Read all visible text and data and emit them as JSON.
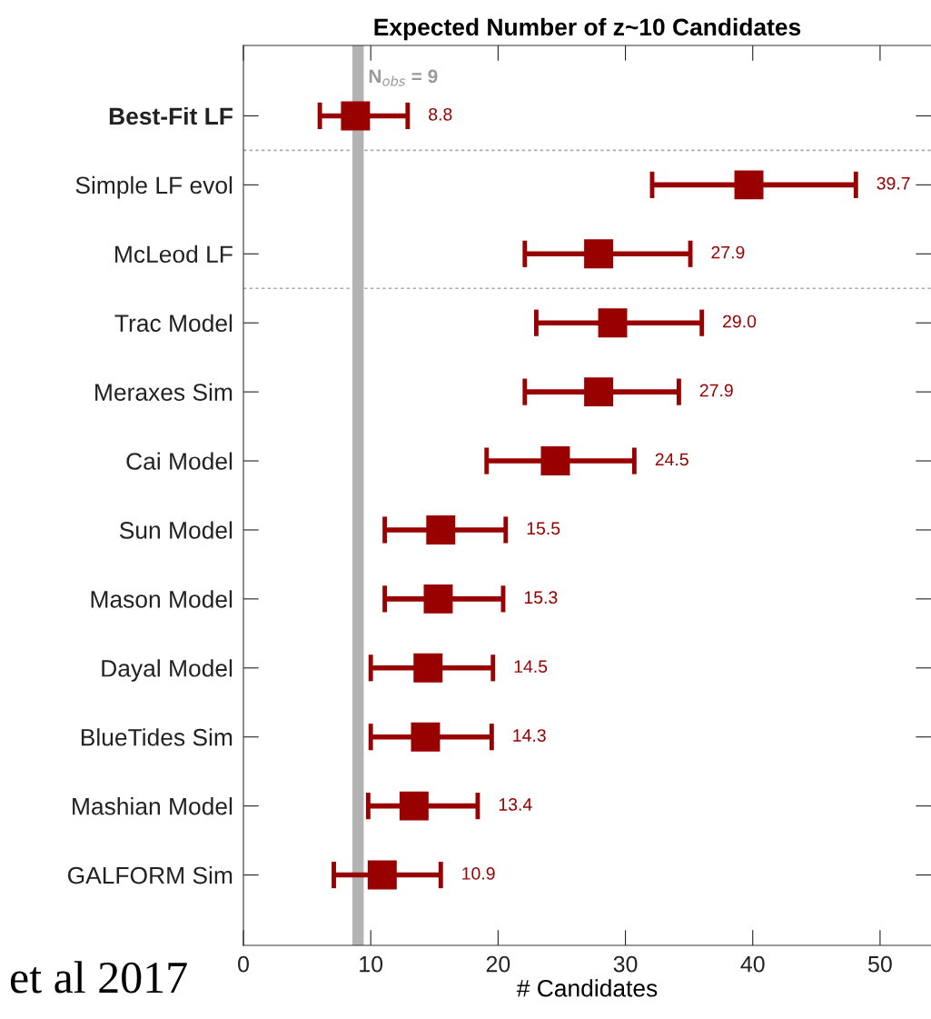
{
  "chart_data": {
    "type": "scatter",
    "title": "Expected Number of z~10 Candidates",
    "xlabel": "# Candidates",
    "categories": [
      "Best-Fit LF",
      "Simple LF evol",
      "McLeod LF",
      "Trac Model",
      "Meraxes Sim",
      "Cai Model",
      "Sun Model",
      "Mason Model",
      "Dayal Model",
      "BlueTides Sim",
      "Mashian Model",
      "GALFORM Sim"
    ],
    "series": [
      {
        "color": "#990000",
        "values": [
          8.8,
          39.7,
          27.9,
          29.0,
          27.9,
          24.5,
          15.5,
          15.3,
          14.5,
          14.3,
          13.4,
          10.9
        ],
        "errors": [
          [
            6.0,
            12.9
          ],
          [
            32.1,
            48.1
          ],
          [
            22.1,
            35.1
          ],
          [
            23.0,
            36.0
          ],
          [
            22.1,
            34.2
          ],
          [
            19.1,
            30.7
          ],
          [
            11.1,
            20.6
          ],
          [
            11.1,
            20.4
          ],
          [
            10.0,
            19.6
          ],
          [
            10.0,
            19.5
          ],
          [
            9.8,
            18.4
          ],
          [
            7.1,
            15.5
          ]
        ]
      }
    ],
    "value_labels": [
      "8.8",
      "39.7",
      "27.9",
      "29.0",
      "27.9",
      "24.5",
      "15.5",
      "15.3",
      "14.5",
      "14.3",
      "13.4",
      "10.9"
    ],
    "marker": "square",
    "orientation": "horizontal",
    "xlim": [
      0,
      54
    ],
    "xticks": [
      0,
      10,
      20,
      30,
      40,
      50
    ],
    "grid": false,
    "legend": false,
    "ref_lines": [
      {
        "axis": "x",
        "value": 9,
        "label": "N$_{obs}$ = 9",
        "color": "#b3b3b3",
        "line_style": "solid"
      }
    ],
    "annotations": [
      "et al 2017"
    ]
  }
}
